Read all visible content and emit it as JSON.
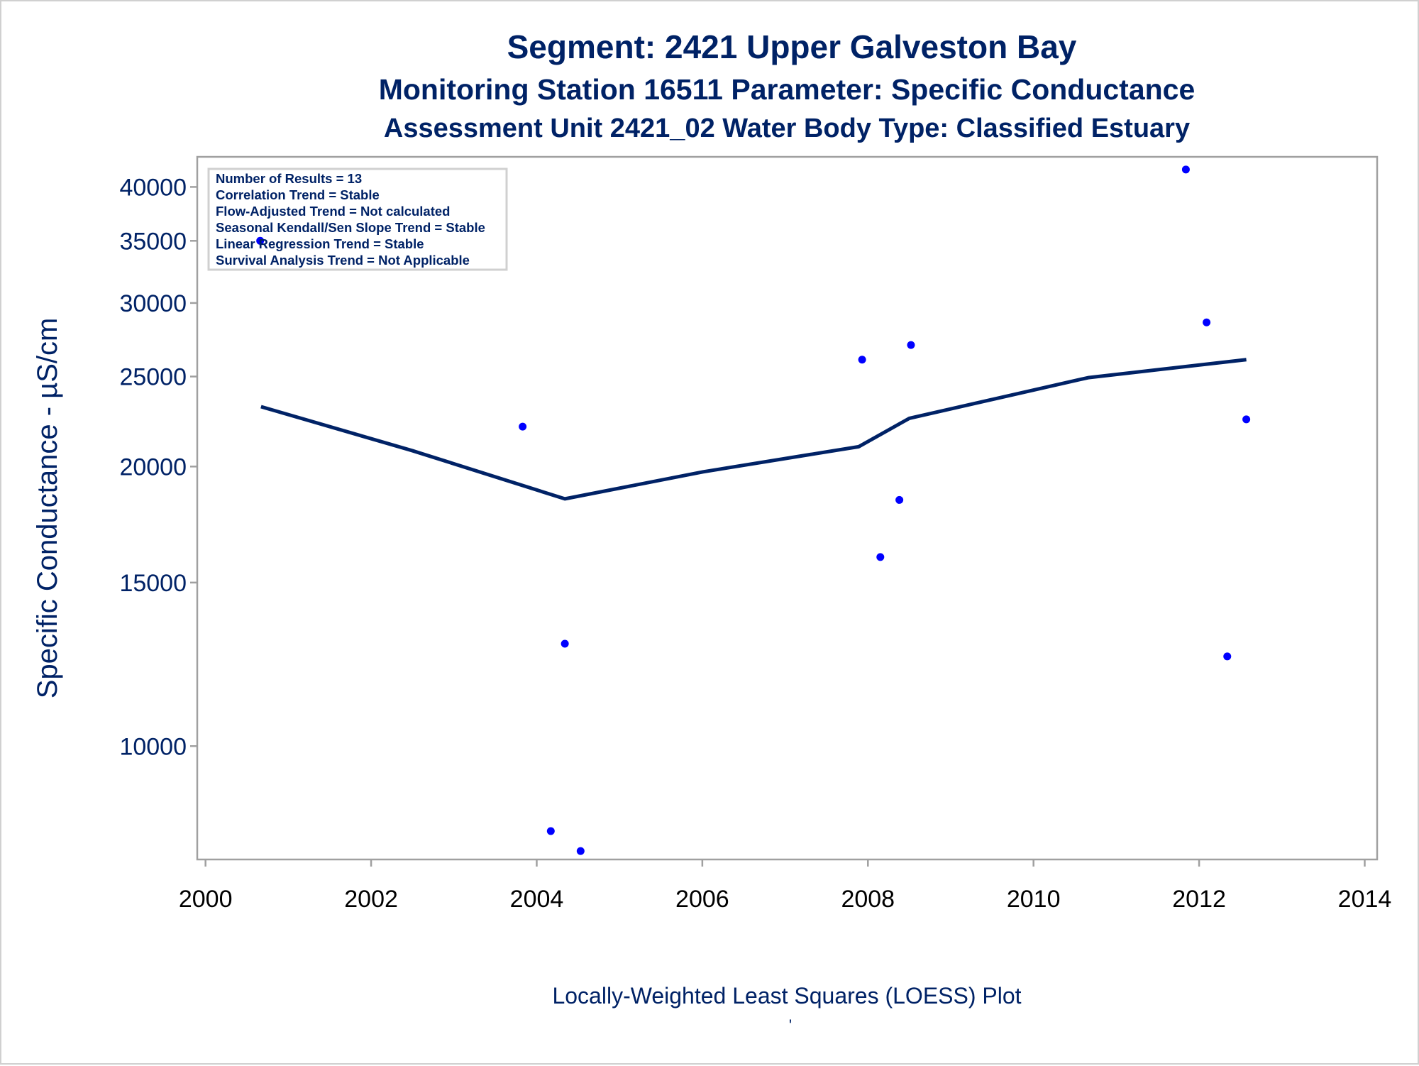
{
  "chart_data": {
    "type": "scatter",
    "title": "Segment: 2421  Upper Galveston Bay",
    "subtitle": "Monitoring Station 16511 Parameter: Specific Conductance",
    "subtitle2": "Assessment Unit 2421_02   Water Body Type: Classified Estuary",
    "xlabel": "",
    "ylabel": "Specific Conductance -  µS/cm",
    "footnote": "Locally-Weighted Least Squares (LOESS) Plot",
    "footnote_mark": "'",
    "y_scale": "log",
    "xlim": [
      1999.9,
      2014.15
    ],
    "ylim": [
      7550,
      43100
    ],
    "x_ticks": [
      2000,
      2002,
      2004,
      2006,
      2008,
      2010,
      2012,
      2014
    ],
    "y_ticks": [
      10000,
      15000,
      20000,
      25000,
      30000,
      35000,
      40000
    ],
    "grid": false,
    "colors": {
      "points": "#0000ff",
      "line": "#002266",
      "text": "#002266",
      "frame": "#a0a0a0"
    },
    "legend_box": {
      "placement": "top-left",
      "lines": [
        "Number of Results = 13",
        "Correlation Trend = Stable",
        "Flow-Adjusted Trend = Not calculated",
        "Seasonal Kendall/Sen Slope Trend = Stable",
        "Linear Regression Trend = Stable",
        "Survival Analysis Trend = Not Applicable"
      ]
    },
    "series": [
      {
        "type": "scatter",
        "points": [
          [
            2000.66,
            35000
          ],
          [
            2003.83,
            22080
          ],
          [
            2004.34,
            12890
          ],
          [
            2004.17,
            8100
          ],
          [
            2004.53,
            7710
          ],
          [
            2007.93,
            26070
          ],
          [
            2008.52,
            27030
          ],
          [
            2008.38,
            18410
          ],
          [
            2008.15,
            15980
          ],
          [
            2011.84,
            41770
          ],
          [
            2012.09,
            28590
          ],
          [
            2012.57,
            22480
          ],
          [
            2012.34,
            12490
          ]
        ]
      },
      {
        "type": "line",
        "points": [
          [
            2000.67,
            23200
          ],
          [
            2002.5,
            20800
          ],
          [
            2004.34,
            18460
          ],
          [
            2006.01,
            19740
          ],
          [
            2007.89,
            21010
          ],
          [
            2008.5,
            22540
          ],
          [
            2010.66,
            24930
          ],
          [
            2012.57,
            26070
          ]
        ]
      }
    ]
  }
}
